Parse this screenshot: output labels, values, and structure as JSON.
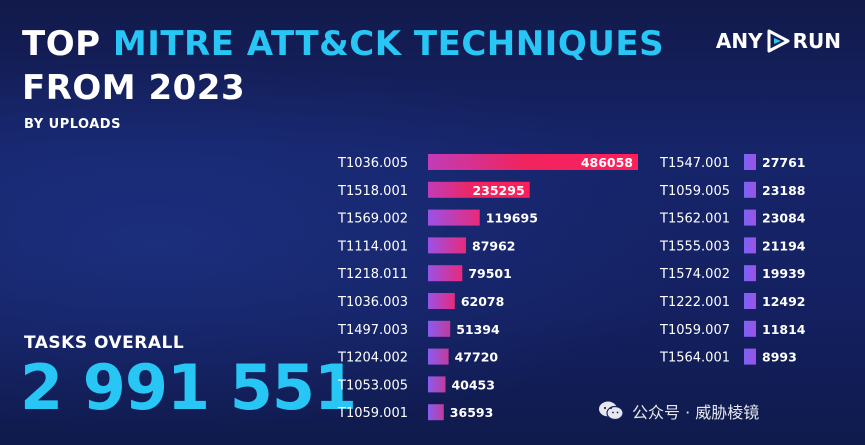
{
  "header": {
    "title_line1_white": "TOP ",
    "title_line1_cyan": "MITRE ATT&CK TECHNIQUES",
    "title_line2": "FROM 2023",
    "subtitle": "BY UPLOADS"
  },
  "logo": {
    "left": "ANY",
    "right": "RUN",
    "icon": "play-triangle-icon"
  },
  "tasks": {
    "label": "TASKS OVERALL",
    "value": "2 991 551"
  },
  "watermark": {
    "text": "公众号 · 威胁棱镜",
    "icon": "wechat-icon"
  },
  "colors": {
    "background": "#16246a",
    "cyan": "#27c6f4",
    "bar_top": "#ff1f5a",
    "bar_mid": "#d7338f",
    "bar_low": "#8a5cf0"
  },
  "chart_data": {
    "type": "bar",
    "orientation": "horizontal",
    "title": "TOP MITRE ATT&CK TECHNIQUES FROM 2023",
    "subtitle": "BY UPLOADS",
    "columns": [
      {
        "categories": [
          "T1036.005",
          "T1518.001",
          "T1569.002",
          "T1114.001",
          "T1218.011",
          "T1036.003",
          "T1497.003",
          "T1204.002",
          "T1053.005",
          "T1059.001"
        ],
        "values": [
          486058,
          235295,
          119695,
          87962,
          79501,
          62078,
          51394,
          47720,
          40453,
          36593
        ]
      },
      {
        "categories": [
          "T1547.001",
          "T1059.005",
          "T1562.001",
          "T1555.003",
          "T1574.002",
          "T1222.001",
          "T1059.007",
          "T1564.001"
        ],
        "values": [
          27761,
          23188,
          23084,
          21194,
          19939,
          12492,
          11814,
          8993
        ]
      }
    ],
    "xlim": [
      0,
      486058
    ],
    "grid": false,
    "legend": "none"
  }
}
